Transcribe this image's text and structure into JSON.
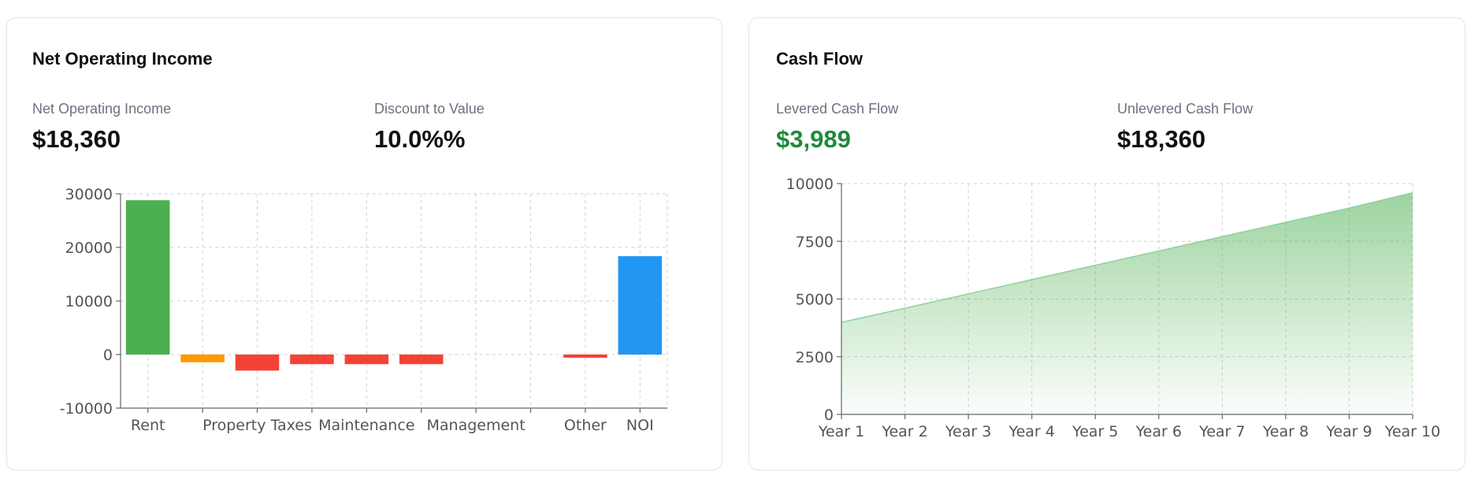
{
  "noi_card": {
    "title": "Net Operating Income",
    "metrics": [
      {
        "label": "Net Operating Income",
        "value": "$18,360"
      },
      {
        "label": "Discount to Value",
        "value": "10.0%%"
      }
    ]
  },
  "cashflow_card": {
    "title": "Cash Flow",
    "metrics": [
      {
        "label": "Levered Cash Flow",
        "value": "$3,989"
      },
      {
        "label": "Unlevered Cash Flow",
        "value": "$18,360"
      }
    ]
  },
  "colors": {
    "income": "#4caf50",
    "opex_orange": "#ff9800",
    "expense": "#f44336",
    "noi": "#2196f3",
    "cashflow_line": "#8fd19e",
    "levered_value": "#1e8a3c"
  },
  "chart_data": [
    {
      "type": "bar",
      "categories": [
        "Rent",
        "",
        "Property Taxes",
        "",
        "Maintenance",
        "",
        "Management",
        "",
        "Other",
        "NOI"
      ],
      "values": [
        28800,
        -1440,
        -3000,
        -1800,
        -1800,
        -1800,
        0,
        0,
        -600,
        18360
      ],
      "bar_colors": [
        "#4caf50",
        "#ff9800",
        "#f44336",
        "#f44336",
        "#f44336",
        "#f44336",
        "#f44336",
        "#f44336",
        "#f44336",
        "#2196f3"
      ],
      "ylim": [
        -10000,
        30000
      ],
      "yticks": [
        -10000,
        0,
        10000,
        20000,
        30000
      ],
      "grid": true,
      "title": "",
      "xlabel": "",
      "ylabel": ""
    },
    {
      "type": "area",
      "x": [
        "Year 1",
        "Year 2",
        "Year 3",
        "Year 4",
        "Year 5",
        "Year 6",
        "Year 7",
        "Year 8",
        "Year 9",
        "Year 10"
      ],
      "values": [
        3989,
        4600,
        5220,
        5840,
        6460,
        7080,
        7700,
        8320,
        8940,
        9600
      ],
      "ylim": [
        0,
        10000
      ],
      "yticks": [
        0,
        2500,
        5000,
        7500,
        10000
      ],
      "grid": true,
      "title": "",
      "xlabel": "",
      "ylabel": ""
    }
  ]
}
